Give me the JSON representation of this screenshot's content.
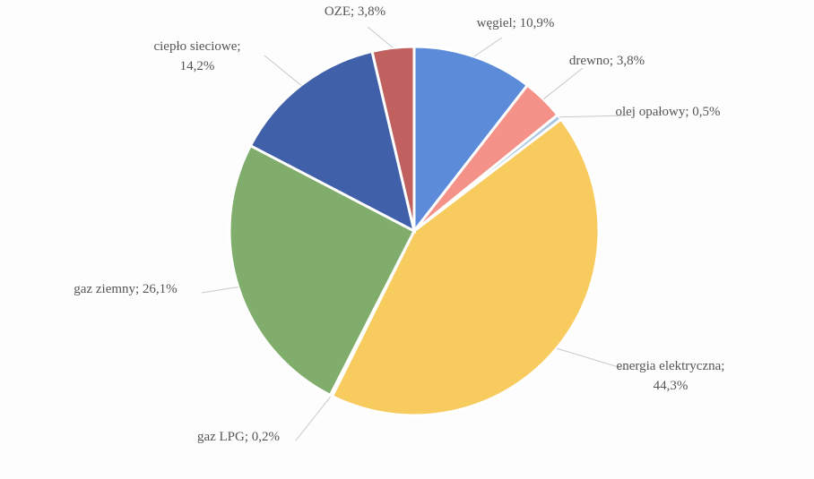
{
  "chart_data": {
    "type": "pie",
    "values": [
      10.9,
      3.8,
      0.5,
      44.3,
      0.2,
      26.1,
      14.2,
      3.8
    ],
    "value_labels": [
      "węgiel; 10,9%",
      "drewno; 3,8%",
      "olej opałowy; 0,5%",
      "energia elektryczna;\n44,3%",
      "gaz LPG; 0,2%",
      "gaz ziemny; 26,1%",
      "ciepło sieciowe;\n14,2%",
      "OZE; 3,8%"
    ],
    "colors": [
      "#5b8bd9",
      "#f4928a",
      "#a9c6e3",
      "#f8cb5e",
      "#d9d9d9",
      "#80ad6b",
      "#4061a9",
      "#c0615f"
    ]
  }
}
